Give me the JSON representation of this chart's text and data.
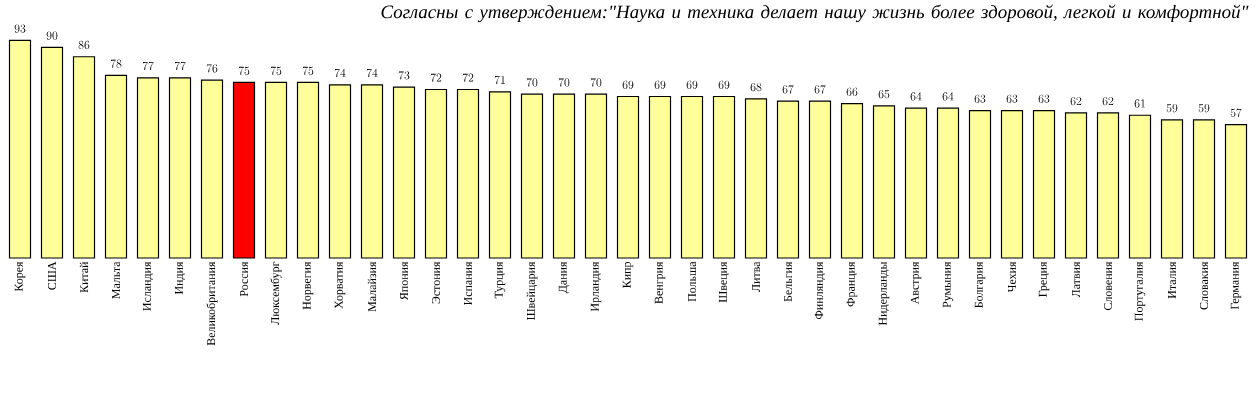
{
  "chart_data": {
    "type": "bar",
    "title": "Согласны с утверждением:\"Наука и техника делает нашу жизнь более здоровой, легкой и комфортной\"",
    "categories": [
      "Корея",
      "США",
      "Китай",
      "Мальта",
      "Исландия",
      "Индия",
      "Великобритания",
      "Россия",
      "Люксембург",
      "Норвегия",
      "Хорватия",
      "Малайзия",
      "Япония",
      "Эстония",
      "Испания",
      "Турция",
      "Швейцария",
      "Дания",
      "Ирландия",
      "Кипр",
      "Венгрия",
      "Польша",
      "Швеция",
      "Литва",
      "Бельгия",
      "Финляндия",
      "Франция",
      "Нидерланды",
      "Австрия",
      "Румыния",
      "Болгария",
      "Чехия",
      "Греция",
      "Латвия",
      "Словения",
      "Португалия",
      "Италия",
      "Словакия",
      "Германия"
    ],
    "values": [
      93,
      90,
      86,
      78,
      77,
      77,
      76,
      75,
      75,
      75,
      74,
      74,
      73,
      72,
      72,
      71,
      70,
      70,
      70,
      69,
      69,
      69,
      69,
      68,
      67,
      67,
      66,
      65,
      64,
      64,
      63,
      63,
      63,
      62,
      62,
      61,
      59,
      59,
      57
    ],
    "colors": [
      "#ffff99",
      "#ffff99",
      "#ffff99",
      "#ffff99",
      "#ffff99",
      "#ffff99",
      "#ffff99",
      "#ff0000",
      "#ffff99",
      "#ffff99",
      "#ffff99",
      "#ffff99",
      "#ffff99",
      "#ffff99",
      "#ffff99",
      "#ffff99",
      "#ffff99",
      "#ffff99",
      "#ffff99",
      "#ffff99",
      "#ffff99",
      "#ffff99",
      "#ffff99",
      "#ffff99",
      "#ffff99",
      "#ffff99",
      "#ffff99",
      "#ffff99",
      "#ffff99",
      "#ffff99",
      "#ffff99",
      "#ffff99",
      "#ffff99",
      "#ffff99",
      "#ffff99",
      "#ffff99",
      "#ffff99",
      "#ffff99",
      "#ffff99"
    ],
    "data_labels": true
  }
}
